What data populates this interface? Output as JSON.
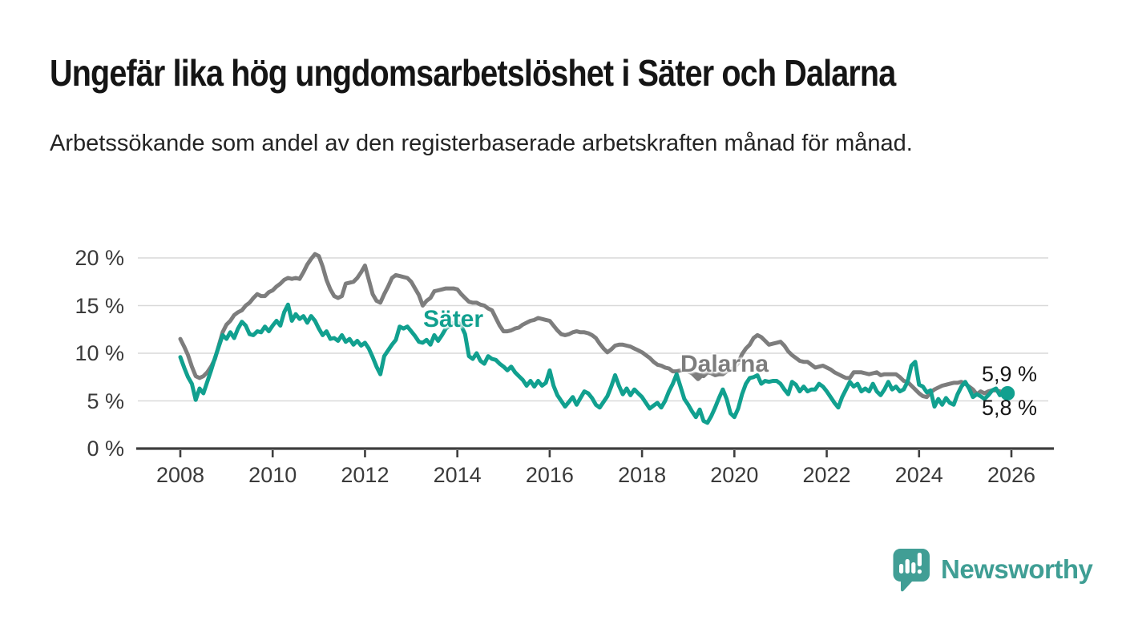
{
  "title": "Ungefär lika hög ungdomsarbetslöshet i Säter och Dalarna",
  "subtitle": "Arbetssökande som andel av den registerbaserade arbetskraften månad för månad.",
  "branding": {
    "logo_text": "Newsworthy",
    "logo_icon": "speech-bubble-bar-chart",
    "brand_color": "#3f9e94"
  },
  "chart_data": {
    "type": "line",
    "frequency": "monthly",
    "x_start_year": 2008,
    "x_end_year": 2026,
    "x_tick_years": [
      2008,
      2010,
      2012,
      2014,
      2016,
      2018,
      2020,
      2022,
      2024,
      2026
    ],
    "y_ticks": [
      {
        "label": "0 %",
        "value": 0
      },
      {
        "label": "5 %",
        "value": 5
      },
      {
        "label": "10 %",
        "value": 10
      },
      {
        "label": "15 %",
        "value": 15
      },
      {
        "label": "20 %",
        "value": 20
      }
    ],
    "ylim": [
      0,
      21
    ],
    "grid": "horizontal",
    "colors": {
      "sater": "#11a08f",
      "dalarna": "#7d7d7d",
      "gridline": "#d9d9d9",
      "axis": "#3e3e3e"
    },
    "series": [
      {
        "name": "Dalarna",
        "color": "#7d7d7d",
        "end_label": "5,9 %",
        "end_dot": false,
        "values": [
          11.5,
          10.7,
          9.8,
          8.6,
          7.6,
          7.4,
          7.6,
          8.0,
          8.6,
          9.4,
          10.8,
          12.2,
          13.0,
          13.4,
          14.0,
          14.3,
          14.5,
          15.0,
          15.3,
          15.8,
          16.2,
          16.0,
          16.0,
          16.4,
          16.6,
          17.0,
          17.3,
          17.7,
          17.9,
          17.8,
          17.9,
          17.8,
          18.5,
          19.3,
          19.9,
          20.4,
          20.2,
          19.1,
          17.7,
          16.7,
          16.0,
          15.8,
          16.0,
          17.3,
          17.4,
          17.5,
          17.9,
          18.5,
          19.2,
          17.7,
          16.2,
          15.5,
          15.3,
          16.2,
          17.0,
          17.9,
          18.2,
          18.1,
          18.0,
          17.9,
          17.5,
          16.8,
          16.1,
          15.0,
          15.5,
          15.8,
          16.5,
          16.6,
          16.7,
          16.8,
          16.8,
          16.8,
          16.7,
          16.2,
          15.8,
          15.4,
          15.3,
          15.3,
          15.1,
          15.0,
          14.7,
          14.5,
          13.7,
          12.9,
          12.3,
          12.3,
          12.4,
          12.6,
          12.7,
          13.0,
          13.2,
          13.4,
          13.5,
          13.7,
          13.6,
          13.5,
          13.4,
          12.9,
          12.4,
          12.0,
          11.9,
          12.0,
          12.2,
          12.3,
          12.2,
          12.2,
          12.1,
          11.9,
          11.6,
          11.0,
          10.5,
          10.1,
          10.4,
          10.8,
          10.9,
          10.9,
          10.8,
          10.7,
          10.5,
          10.3,
          10.1,
          9.8,
          9.5,
          9.1,
          8.8,
          8.7,
          8.5,
          8.4,
          8.1,
          8.1,
          8.2,
          8.3,
          8.1,
          7.9,
          7.8,
          7.7,
          7.6,
          8.0,
          7.9,
          7.7,
          7.8,
          7.8,
          8.1,
          8.3,
          8.5,
          9.0,
          9.9,
          10.5,
          10.9,
          11.6,
          11.9,
          11.7,
          11.3,
          10.9,
          11.0,
          11.1,
          11.2,
          10.8,
          10.2,
          9.8,
          9.5,
          9.2,
          9.1,
          9.1,
          8.8,
          8.5,
          8.6,
          8.7,
          8.5,
          8.3,
          8.0,
          7.8,
          7.6,
          7.4,
          7.4,
          8.0,
          8.0,
          8.0,
          7.9,
          7.8,
          7.9,
          8.0,
          7.7,
          7.8,
          7.8,
          7.8,
          7.8,
          7.5,
          7.1,
          7.0,
          6.6,
          6.2,
          5.8,
          5.5,
          5.4,
          5.9,
          6.2,
          6.4,
          6.6,
          6.7,
          6.8,
          6.9,
          6.9,
          7.0,
          6.8,
          6.5,
          6.2,
          5.7,
          6.0,
          5.8,
          6.0,
          6.1,
          6.1,
          6.0,
          5.9,
          5.9
        ]
      },
      {
        "name": "Säter",
        "color": "#11a08f",
        "end_label": "5,8 %",
        "end_dot": true,
        "values": [
          9.6,
          8.5,
          7.5,
          6.8,
          5.1,
          6.3,
          5.8,
          7.0,
          8.2,
          9.5,
          10.7,
          11.9,
          11.5,
          12.2,
          11.6,
          12.6,
          13.3,
          12.9,
          12.0,
          11.9,
          12.3,
          12.2,
          12.8,
          12.3,
          12.9,
          13.4,
          12.9,
          14.3,
          15.1,
          13.4,
          14.1,
          13.6,
          13.9,
          13.2,
          13.9,
          13.4,
          12.6,
          11.9,
          12.3,
          11.5,
          11.6,
          11.3,
          11.9,
          11.2,
          11.5,
          10.9,
          11.3,
          10.8,
          11.1,
          10.5,
          9.6,
          8.6,
          7.8,
          9.7,
          10.3,
          10.9,
          11.4,
          12.8,
          12.6,
          12.8,
          12.3,
          11.8,
          11.2,
          11.1,
          11.4,
          10.9,
          11.9,
          11.3,
          11.9,
          12.6,
          12.9,
          13.2,
          13.3,
          12.9,
          12.0,
          9.7,
          9.4,
          10.0,
          9.2,
          8.9,
          9.7,
          9.4,
          9.3,
          8.9,
          8.6,
          8.2,
          8.6,
          8.0,
          7.6,
          7.2,
          6.6,
          7.1,
          6.5,
          7.1,
          6.6,
          6.9,
          8.2,
          6.6,
          5.6,
          5.0,
          4.4,
          4.9,
          5.4,
          4.6,
          5.3,
          6.0,
          5.8,
          5.3,
          4.6,
          4.3,
          4.9,
          5.5,
          6.5,
          7.7,
          6.6,
          5.7,
          6.3,
          5.6,
          6.2,
          5.8,
          5.4,
          4.8,
          4.2,
          4.5,
          4.8,
          4.3,
          5.0,
          6.0,
          6.8,
          7.8,
          6.5,
          5.2,
          4.6,
          3.9,
          3.3,
          4.1,
          2.9,
          2.7,
          3.4,
          4.3,
          5.3,
          6.2,
          5.2,
          3.7,
          3.3,
          4.2,
          5.7,
          6.8,
          7.4,
          7.5,
          7.7,
          6.8,
          7.1,
          7.0,
          7.1,
          7.1,
          6.8,
          6.2,
          5.7,
          7.0,
          6.7,
          6.0,
          6.5,
          6.0,
          6.2,
          6.2,
          6.8,
          6.5,
          6.0,
          5.4,
          4.8,
          4.3,
          5.4,
          6.2,
          7.0,
          6.5,
          6.8,
          6.0,
          6.3,
          6.0,
          6.8,
          6.0,
          5.6,
          6.2,
          7.0,
          6.2,
          6.5,
          6.0,
          6.2,
          7.0,
          8.7,
          9.1,
          6.7,
          6.5,
          5.9,
          6.1,
          4.4,
          5.2,
          4.6,
          5.3,
          4.8,
          4.6,
          5.7,
          6.5,
          7.0,
          6.3,
          5.4,
          5.7,
          5.5,
          5.2,
          5.6,
          6.1,
          6.3,
          5.6,
          5.8,
          5.8
        ]
      }
    ],
    "annotations": {
      "sater_label": "Säter",
      "dalarna_label": "Dalarna",
      "dalarna_pointer": "chevron-down"
    }
  }
}
